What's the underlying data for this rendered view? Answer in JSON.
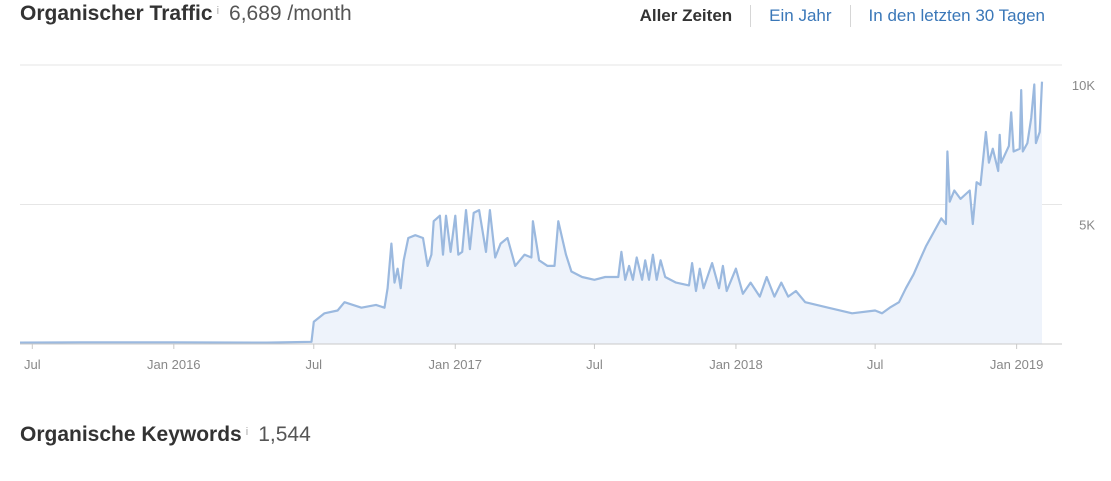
{
  "traffic": {
    "title": "Organischer Traffic",
    "info": "i",
    "value": "6,689 /month",
    "tabs": [
      {
        "label": "Aller Zeiten",
        "active": true
      },
      {
        "label": "Ein Jahr",
        "active": false
      },
      {
        "label": "In den letzten 30 Tagen",
        "active": false
      }
    ]
  },
  "keywords": {
    "title": "Organische Keywords",
    "info": "i",
    "value": "1,544"
  },
  "colors": {
    "line": "#9bb9df",
    "fill": "#eef3fb",
    "grid": "#e6e6e6",
    "axis": "#c9c9c9",
    "tick_text": "#888888",
    "active_tab": "#333333",
    "link": "#3a77b8"
  },
  "chart_data": {
    "type": "area",
    "x_unit": "date",
    "y_unit": "visits/month",
    "x_range": [
      "2015-06-15",
      "2019-03-01"
    ],
    "ylim": [
      0,
      10000
    ],
    "yticks": [
      {
        "value": 5000,
        "label": "5K"
      },
      {
        "value": 10000,
        "label": "10K"
      }
    ],
    "xticks": [
      {
        "date": "2015-07-01",
        "label": "Jul"
      },
      {
        "date": "2016-01-01",
        "label": "Jan 2016"
      },
      {
        "date": "2016-07-01",
        "label": "Jul"
      },
      {
        "date": "2017-01-01",
        "label": "Jan 2017"
      },
      {
        "date": "2017-07-01",
        "label": "Jul"
      },
      {
        "date": "2018-01-01",
        "label": "Jan 2018"
      },
      {
        "date": "2018-07-01",
        "label": "Jul"
      },
      {
        "date": "2019-01-01",
        "label": "Jan 2019"
      }
    ],
    "grid": true,
    "series": [
      {
        "points": [
          [
            "2015-06-15",
            50
          ],
          [
            "2015-09-01",
            60
          ],
          [
            "2016-01-01",
            60
          ],
          [
            "2016-05-01",
            50
          ],
          [
            "2016-06-28",
            80
          ],
          [
            "2016-07-01",
            800
          ],
          [
            "2016-07-15",
            1100
          ],
          [
            "2016-08-01",
            1200
          ],
          [
            "2016-08-10",
            1500
          ],
          [
            "2016-09-01",
            1300
          ],
          [
            "2016-09-20",
            1400
          ],
          [
            "2016-10-01",
            1300
          ],
          [
            "2016-10-05",
            2000
          ],
          [
            "2016-10-10",
            3600
          ],
          [
            "2016-10-14",
            2200
          ],
          [
            "2016-10-18",
            2700
          ],
          [
            "2016-10-22",
            2000
          ],
          [
            "2016-10-26",
            3000
          ],
          [
            "2016-11-01",
            3800
          ],
          [
            "2016-11-10",
            3900
          ],
          [
            "2016-11-20",
            3800
          ],
          [
            "2016-11-26",
            2800
          ],
          [
            "2016-12-01",
            3200
          ],
          [
            "2016-12-04",
            4400
          ],
          [
            "2016-12-12",
            4600
          ],
          [
            "2016-12-16",
            3200
          ],
          [
            "2016-12-20",
            4600
          ],
          [
            "2016-12-26",
            3300
          ],
          [
            "2017-01-01",
            4600
          ],
          [
            "2017-01-05",
            3200
          ],
          [
            "2017-01-10",
            3300
          ],
          [
            "2017-01-15",
            4800
          ],
          [
            "2017-01-20",
            3400
          ],
          [
            "2017-01-25",
            4700
          ],
          [
            "2017-02-01",
            4800
          ],
          [
            "2017-02-10",
            3300
          ],
          [
            "2017-02-15",
            4800
          ],
          [
            "2017-02-22",
            3100
          ],
          [
            "2017-03-01",
            3600
          ],
          [
            "2017-03-10",
            3800
          ],
          [
            "2017-03-20",
            2800
          ],
          [
            "2017-04-01",
            3200
          ],
          [
            "2017-04-10",
            3100
          ],
          [
            "2017-04-12",
            4400
          ],
          [
            "2017-04-20",
            3000
          ],
          [
            "2017-05-01",
            2800
          ],
          [
            "2017-05-10",
            2800
          ],
          [
            "2017-05-15",
            4400
          ],
          [
            "2017-05-25",
            3200
          ],
          [
            "2017-06-01",
            2600
          ],
          [
            "2017-06-15",
            2400
          ],
          [
            "2017-07-01",
            2300
          ],
          [
            "2017-07-15",
            2400
          ],
          [
            "2017-08-01",
            2400
          ],
          [
            "2017-08-05",
            3300
          ],
          [
            "2017-08-10",
            2300
          ],
          [
            "2017-08-15",
            2800
          ],
          [
            "2017-08-20",
            2300
          ],
          [
            "2017-08-25",
            3100
          ],
          [
            "2017-09-01",
            2300
          ],
          [
            "2017-09-05",
            3000
          ],
          [
            "2017-09-10",
            2300
          ],
          [
            "2017-09-15",
            3200
          ],
          [
            "2017-09-20",
            2300
          ],
          [
            "2017-09-25",
            3000
          ],
          [
            "2017-10-01",
            2400
          ],
          [
            "2017-10-15",
            2200
          ],
          [
            "2017-11-01",
            2100
          ],
          [
            "2017-11-05",
            2900
          ],
          [
            "2017-11-10",
            1900
          ],
          [
            "2017-11-15",
            2700
          ],
          [
            "2017-11-20",
            2000
          ],
          [
            "2017-12-01",
            2900
          ],
          [
            "2017-12-10",
            2000
          ],
          [
            "2017-12-15",
            2800
          ],
          [
            "2017-12-20",
            1900
          ],
          [
            "2018-01-01",
            2700
          ],
          [
            "2018-01-10",
            1800
          ],
          [
            "2018-01-20",
            2200
          ],
          [
            "2018-02-01",
            1700
          ],
          [
            "2018-02-10",
            2400
          ],
          [
            "2018-02-20",
            1700
          ],
          [
            "2018-03-01",
            2200
          ],
          [
            "2018-03-10",
            1700
          ],
          [
            "2018-03-20",
            1900
          ],
          [
            "2018-04-01",
            1500
          ],
          [
            "2018-05-01",
            1300
          ],
          [
            "2018-06-01",
            1100
          ],
          [
            "2018-07-01",
            1200
          ],
          [
            "2018-07-10",
            1100
          ],
          [
            "2018-07-20",
            1300
          ],
          [
            "2018-08-01",
            1500
          ],
          [
            "2018-08-10",
            2000
          ],
          [
            "2018-08-20",
            2500
          ],
          [
            "2018-08-28",
            3000
          ],
          [
            "2018-09-05",
            3500
          ],
          [
            "2018-09-15",
            4000
          ],
          [
            "2018-09-25",
            4500
          ],
          [
            "2018-10-01",
            4300
          ],
          [
            "2018-10-03",
            6900
          ],
          [
            "2018-10-06",
            5100
          ],
          [
            "2018-10-12",
            5500
          ],
          [
            "2018-10-20",
            5200
          ],
          [
            "2018-11-01",
            5500
          ],
          [
            "2018-11-05",
            4300
          ],
          [
            "2018-11-10",
            5800
          ],
          [
            "2018-11-15",
            5700
          ],
          [
            "2018-11-22",
            7600
          ],
          [
            "2018-11-26",
            6500
          ],
          [
            "2018-12-01",
            7000
          ],
          [
            "2018-12-08",
            6200
          ],
          [
            "2018-12-10",
            7500
          ],
          [
            "2018-12-12",
            6500
          ],
          [
            "2018-12-22",
            7100
          ],
          [
            "2018-12-25",
            8300
          ],
          [
            "2018-12-28",
            6900
          ],
          [
            "2019-01-05",
            7000
          ],
          [
            "2019-01-07",
            9100
          ],
          [
            "2019-01-09",
            6900
          ],
          [
            "2019-01-15",
            7200
          ],
          [
            "2019-01-20",
            8100
          ],
          [
            "2019-01-24",
            9300
          ],
          [
            "2019-01-26",
            7200
          ],
          [
            "2019-01-31",
            7600
          ],
          [
            "2019-02-03",
            9400
          ]
        ]
      }
    ]
  }
}
